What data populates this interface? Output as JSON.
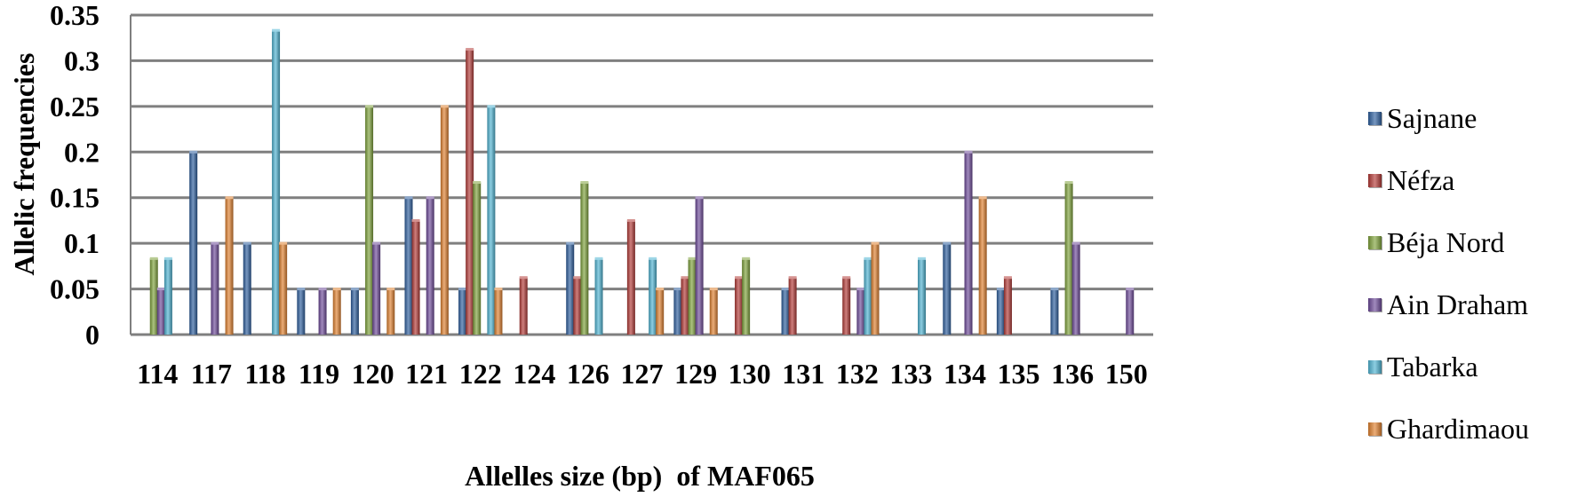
{
  "chart_data": {
    "type": "bar",
    "title": "",
    "xlabel": "Allelles size (bp)  of MAF065",
    "ylabel": "Allelic frequencies",
    "ylim": [
      0,
      0.35
    ],
    "yticks": [
      "0",
      "0.05",
      "0.1",
      "0.15",
      "0.2",
      "0.25",
      "0.3",
      "0.35"
    ],
    "grid": true,
    "legend_position": "right",
    "categories": [
      "114",
      "117",
      "118",
      "119",
      "120",
      "121",
      "122",
      "124",
      "126",
      "127",
      "129",
      "130",
      "131",
      "132",
      "133",
      "134",
      "135",
      "136",
      "150"
    ],
    "series": [
      {
        "name": "Sajnane",
        "color": "#2e5f9e",
        "values": [
          0,
          0.2,
          0.1,
          0.05,
          0.05,
          0.15,
          0.05,
          0,
          0.1,
          0,
          0.05,
          0,
          0.05,
          0,
          0,
          0.1,
          0.05,
          0.05,
          0
        ]
      },
      {
        "name": "Néfza",
        "color": "#b33a37",
        "values": [
          0,
          0,
          0,
          0,
          0,
          0.125,
          0.3125,
          0.0625,
          0.0625,
          0.125,
          0.0625,
          0.0625,
          0.0625,
          0.0625,
          0,
          0,
          0.0625,
          0,
          0
        ]
      },
      {
        "name": "Béja Nord",
        "color": "#7fa33c",
        "values": [
          0.0833,
          0,
          0,
          0,
          0.25,
          0,
          0.1667,
          0,
          0.1667,
          0,
          0.0833,
          0.0833,
          0,
          0,
          0,
          0,
          0,
          0.1667,
          0
        ]
      },
      {
        "name": "Ain Draham",
        "color": "#6e4b9a",
        "values": [
          0.05,
          0.1,
          0,
          0.05,
          0.1,
          0.15,
          0,
          0,
          0,
          0,
          0.15,
          0,
          0,
          0.05,
          0,
          0.2,
          0,
          0.1,
          0.05
        ]
      },
      {
        "name": "Tabarka",
        "color": "#4fb4d3",
        "values": [
          0.0833,
          0,
          0.3333,
          0,
          0,
          0,
          0.25,
          0,
          0.0833,
          0.0833,
          0,
          0,
          0,
          0.0833,
          0.0833,
          0,
          0,
          0,
          0
        ]
      },
      {
        "name": "Ghardimaou",
        "color": "#e0812f",
        "values": [
          0,
          0.15,
          0.1,
          0.05,
          0.05,
          0.25,
          0.05,
          0,
          0,
          0.05,
          0.05,
          0,
          0,
          0.1,
          0,
          0.15,
          0,
          0,
          0
        ]
      }
    ]
  }
}
